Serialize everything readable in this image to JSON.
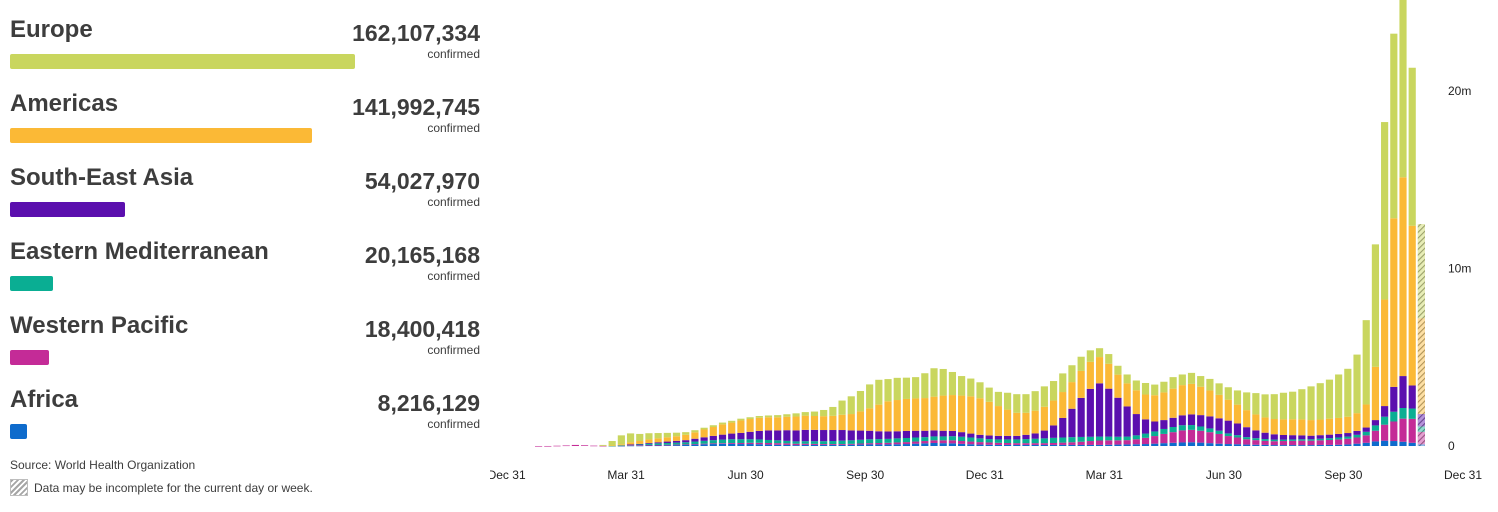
{
  "source_label": "Source:",
  "source_value": "World Health Organization",
  "incomplete_note": "Data may be incomplete for the current day or week.",
  "regions": [
    {
      "name": "Europe",
      "value": "162,107,334",
      "unit": "confirmed",
      "color": "#c9d65e"
    },
    {
      "name": "Americas",
      "value": "141,992,745",
      "unit": "confirmed",
      "color": "#fbb936"
    },
    {
      "name": "South-East Asia",
      "value": "54,027,970",
      "unit": "confirmed",
      "color": "#5b0fae"
    },
    {
      "name": "Eastern Mediterranean",
      "value": "20,165,168",
      "unit": "confirmed",
      "color": "#0aae93"
    },
    {
      "name": "Western Pacific",
      "value": "18,400,418",
      "unit": "confirmed",
      "color": "#c42b97"
    },
    {
      "name": "Africa",
      "value": "8,216,129",
      "unit": "confirmed",
      "color": "#0e6bcc"
    }
  ],
  "chart_data": {
    "type": "bar",
    "stacked": true,
    "unit": "confirmed cases per week",
    "x_ticks": [
      "Dec 31",
      "Mar 31",
      "Jun 30",
      "Sep 30",
      "Dec 31",
      "Mar 31",
      "Jun 30",
      "Sep 30",
      "Dec 31"
    ],
    "y_ticks": [
      {
        "value": 0,
        "label": "0"
      },
      {
        "value": 10000000,
        "label": "10m"
      },
      {
        "value": 20000000,
        "label": "20m"
      }
    ],
    "ylim": [
      0,
      24000000
    ],
    "grid": false,
    "last_week_incomplete": true,
    "stack_order": [
      "Africa",
      "Western Pacific",
      "Eastern Mediterranean",
      "South-East Asia",
      "Americas",
      "Europe"
    ],
    "series": [
      {
        "name": "Africa",
        "color": "#0e6bcc",
        "values": [
          0,
          0,
          0,
          0,
          0,
          0,
          0,
          0,
          0,
          10000,
          20000,
          20000,
          30000,
          30000,
          40000,
          50000,
          60000,
          80000,
          100000,
          110000,
          120000,
          120000,
          110000,
          110000,
          100000,
          80000,
          70000,
          60000,
          50000,
          60000,
          60000,
          60000,
          60000,
          60000,
          70000,
          80000,
          90000,
          90000,
          90000,
          100000,
          110000,
          130000,
          150000,
          170000,
          160000,
          150000,
          120000,
          100000,
          80000,
          70000,
          60000,
          60000,
          60000,
          60000,
          60000,
          60000,
          60000,
          60000,
          60000,
          60000,
          60000,
          60000,
          70000,
          80000,
          90000,
          100000,
          110000,
          130000,
          160000,
          180000,
          200000,
          210000,
          190000,
          160000,
          130000,
          110000,
          100000,
          80000,
          70000,
          60000,
          50000,
          50000,
          50000,
          50000,
          50000,
          60000,
          60000,
          70000,
          90000,
          130000,
          180000,
          260000,
          300000,
          280000,
          240000,
          180000,
          100000
        ]
      },
      {
        "name": "Western Pacific",
        "color": "#c42b97",
        "values": [
          500,
          1000,
          15000,
          30000,
          60000,
          40000,
          20000,
          10000,
          10000,
          20000,
          30000,
          30000,
          30000,
          30000,
          30000,
          30000,
          30000,
          30000,
          30000,
          40000,
          40000,
          50000,
          60000,
          70000,
          80000,
          90000,
          90000,
          90000,
          80000,
          70000,
          60000,
          50000,
          50000,
          50000,
          50000,
          60000,
          70000,
          80000,
          90000,
          100000,
          110000,
          120000,
          130000,
          150000,
          160000,
          170000,
          160000,
          150000,
          140000,
          130000,
          120000,
          110000,
          100000,
          100000,
          100000,
          100000,
          110000,
          130000,
          150000,
          180000,
          220000,
          250000,
          250000,
          240000,
          240000,
          280000,
          350000,
          430000,
          520000,
          600000,
          680000,
          700000,
          670000,
          620000,
          550000,
          450000,
          380000,
          300000,
          260000,
          230000,
          220000,
          230000,
          240000,
          250000,
          250000,
          260000,
          280000,
          300000,
          320000,
          350000,
          420000,
          600000,
          900000,
          1100000,
          1300000,
          1350000,
          700000
        ]
      },
      {
        "name": "Eastern Mediterranean",
        "color": "#0aae93",
        "values": [
          0,
          0,
          0,
          0,
          0,
          0,
          0,
          0,
          1000,
          10000,
          30000,
          50000,
          70000,
          90000,
          100000,
          110000,
          120000,
          140000,
          160000,
          180000,
          200000,
          210000,
          210000,
          200000,
          190000,
          170000,
          160000,
          140000,
          130000,
          140000,
          150000,
          160000,
          170000,
          190000,
          200000,
          210000,
          220000,
          220000,
          220000,
          230000,
          230000,
          230000,
          220000,
          220000,
          220000,
          230000,
          240000,
          230000,
          210000,
          190000,
          190000,
          200000,
          210000,
          230000,
          250000,
          270000,
          290000,
          290000,
          290000,
          270000,
          240000,
          220000,
          210000,
          200000,
          200000,
          220000,
          240000,
          260000,
          280000,
          290000,
          290000,
          270000,
          240000,
          210000,
          180000,
          150000,
          130000,
          120000,
          110000,
          100000,
          90000,
          80000,
          80000,
          80000,
          80000,
          90000,
          100000,
          110000,
          120000,
          150000,
          200000,
          300000,
          450000,
          550000,
          600000,
          580000,
          300000
        ]
      },
      {
        "name": "South-East Asia",
        "color": "#5b0fae",
        "values": [
          0,
          0,
          0,
          0,
          0,
          0,
          0,
          0,
          0,
          0,
          10000,
          20000,
          40000,
          60000,
          80000,
          100000,
          120000,
          160000,
          200000,
          240000,
          280000,
          320000,
          360000,
          420000,
          480000,
          540000,
          560000,
          600000,
          620000,
          640000,
          640000,
          630000,
          620000,
          600000,
          560000,
          520000,
          480000,
          440000,
          420000,
          400000,
          400000,
          380000,
          360000,
          340000,
          320000,
          300000,
          260000,
          220000,
          200000,
          200000,
          200000,
          200000,
          200000,
          240000,
          300000,
          440000,
          700000,
          1100000,
          1600000,
          2200000,
          2700000,
          3000000,
          2700000,
          2200000,
          1700000,
          1200000,
          800000,
          560000,
          500000,
          520000,
          560000,
          600000,
          640000,
          680000,
          700000,
          720000,
          660000,
          560000,
          440000,
          360000,
          300000,
          260000,
          240000,
          220000,
          200000,
          200000,
          200000,
          200000,
          200000,
          220000,
          240000,
          300000,
          600000,
          1400000,
          1800000,
          1300000,
          700000
        ]
      },
      {
        "name": "Americas",
        "color": "#fbb936",
        "values": [
          0,
          0,
          0,
          0,
          0,
          0,
          0,
          0,
          20000,
          60000,
          120000,
          160000,
          200000,
          220000,
          240000,
          260000,
          300000,
          360000,
          440000,
          500000,
          580000,
          620000,
          700000,
          720000,
          740000,
          740000,
          740000,
          760000,
          780000,
          800000,
          780000,
          780000,
          800000,
          860000,
          920000,
          1080000,
          1260000,
          1500000,
          1700000,
          1760000,
          1800000,
          1820000,
          1840000,
          1900000,
          1980000,
          2020000,
          2060000,
          2100000,
          2060000,
          1900000,
          1680000,
          1480000,
          1300000,
          1240000,
          1280000,
          1340000,
          1400000,
          1460000,
          1500000,
          1520000,
          1520000,
          1480000,
          1400000,
          1300000,
          1300000,
          1340000,
          1400000,
          1480000,
          1560000,
          1640000,
          1700000,
          1720000,
          1600000,
          1460000,
          1320000,
          1180000,
          1060000,
          960000,
          900000,
          860000,
          860000,
          880000,
          900000,
          900000,
          880000,
          880000,
          900000,
          900000,
          920000,
          1000000,
          1300000,
          3000000,
          6000000,
          9500000,
          11200000,
          9000000,
          5400000
        ]
      },
      {
        "name": "Europe",
        "color": "#c9d65e",
        "values": [
          0,
          0,
          0,
          0,
          0,
          0,
          0,
          50000,
          250000,
          500000,
          500000,
          400000,
          350000,
          300000,
          250000,
          200000,
          150000,
          120000,
          100000,
          100000,
          100000,
          100000,
          100000,
          100000,
          100000,
          100000,
          120000,
          140000,
          180000,
          200000,
          250000,
          350000,
          500000,
          800000,
          1000000,
          1150000,
          1350000,
          1400000,
          1250000,
          1250000,
          1200000,
          1200000,
          1400000,
          1600000,
          1500000,
          1300000,
          1100000,
          1000000,
          900000,
          800000,
          800000,
          950000,
          1050000,
          1050000,
          1100000,
          1150000,
          1100000,
          1050000,
          950000,
          800000,
          650000,
          500000,
          550000,
          500000,
          500000,
          550000,
          650000,
          600000,
          600000,
          650000,
          600000,
          620000,
          600000,
          650000,
          650000,
          700000,
          800000,
          1000000,
          1200000,
          1300000,
          1400000,
          1500000,
          1550000,
          1700000,
          1900000,
          2050000,
          2200000,
          2450000,
          2700000,
          3300000,
          4750000,
          6900000,
          10000000,
          10400000,
          10350000,
          8900000,
          5300000
        ]
      }
    ]
  }
}
